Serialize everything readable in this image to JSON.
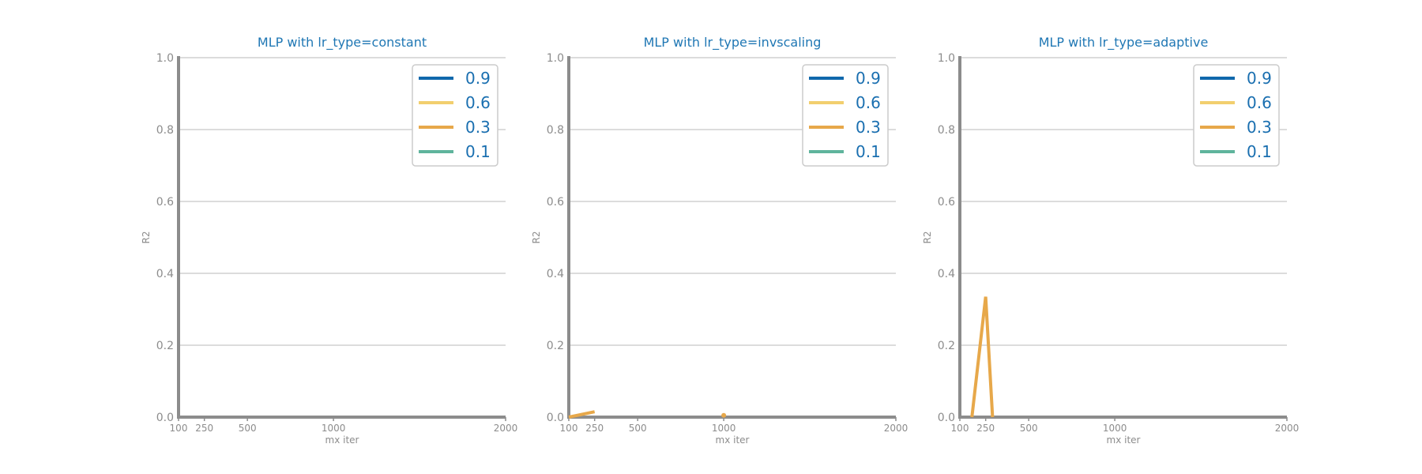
{
  "colors": {
    "title": "#1f77b4",
    "axis": "#8c8c8c",
    "grid": "#d0d0d0",
    "legend_text": "#1a6fb0",
    "legend_border": "#cccccc"
  },
  "chart_data": [
    {
      "type": "line",
      "title": "MLP with lr_type=constant",
      "xlabel": "mx iter",
      "ylabel": "R2",
      "x": [
        100,
        250,
        500,
        1000,
        2000
      ],
      "xticks": [
        "100",
        "250",
        "500",
        "1000",
        "2000"
      ],
      "xlim": [
        100,
        2000
      ],
      "ylim": [
        0.0,
        1.0
      ],
      "yticks": [
        "0.0",
        "0.2",
        "0.4",
        "0.6",
        "0.8",
        "1.0"
      ],
      "grid": true,
      "legend_position": "top-right",
      "series": [
        {
          "name": "0.9",
          "color": "#1068ac",
          "values": [
            null,
            null,
            null,
            null,
            null
          ]
        },
        {
          "name": "0.6",
          "color": "#f2cf6e",
          "values": [
            null,
            null,
            null,
            null,
            null
          ]
        },
        {
          "name": "0.3",
          "color": "#e7a84a",
          "values": [
            null,
            null,
            null,
            null,
            null
          ]
        },
        {
          "name": "0.1",
          "color": "#5fb49c",
          "values": [
            null,
            null,
            null,
            null,
            null
          ]
        }
      ]
    },
    {
      "type": "line",
      "title": "MLP with lr_type=invscaling",
      "xlabel": "mx iter",
      "ylabel": "R2",
      "x": [
        100,
        250,
        500,
        1000,
        2000
      ],
      "xticks": [
        "100",
        "250",
        "500",
        "1000",
        "2000"
      ],
      "xlim": [
        100,
        2000
      ],
      "ylim": [
        0.0,
        1.0
      ],
      "yticks": [
        "0.0",
        "0.2",
        "0.4",
        "0.6",
        "0.8",
        "1.0"
      ],
      "grid": true,
      "legend_position": "top-right",
      "series": [
        {
          "name": "0.9",
          "color": "#1068ac",
          "values": [
            null,
            null,
            null,
            null,
            null
          ]
        },
        {
          "name": "0.6",
          "color": "#f2cf6e",
          "values": [
            null,
            null,
            null,
            null,
            null
          ]
        },
        {
          "name": "0.3",
          "color": "#e7a84a",
          "values": [
            0.0,
            0.015,
            null,
            0.005,
            null
          ]
        },
        {
          "name": "0.1",
          "color": "#5fb49c",
          "values": [
            null,
            null,
            null,
            null,
            null
          ]
        }
      ]
    },
    {
      "type": "line",
      "title": "MLP with lr_type=adaptive",
      "xlabel": "mx iter",
      "ylabel": "R2",
      "x": [
        100,
        250,
        500,
        1000,
        2000
      ],
      "xticks": [
        "100",
        "250",
        "500",
        "1000",
        "2000"
      ],
      "xlim": [
        100,
        2000
      ],
      "ylim": [
        0.0,
        1.0
      ],
      "yticks": [
        "0.0",
        "0.2",
        "0.4",
        "0.6",
        "0.8",
        "1.0"
      ],
      "grid": true,
      "legend_position": "top-right",
      "series": [
        {
          "name": "0.9",
          "color": "#1068ac",
          "values": [
            null,
            null,
            null,
            null,
            null
          ]
        },
        {
          "name": "0.6",
          "color": "#f2cf6e",
          "values": [
            null,
            null,
            null,
            null,
            null
          ]
        },
        {
          "name": "0.3",
          "color": "#e7a84a",
          "x": [
            170,
            250,
            290
          ],
          "values": [
            0.0,
            0.335,
            0.0
          ]
        },
        {
          "name": "0.1",
          "color": "#5fb49c",
          "values": [
            null,
            null,
            null,
            null,
            null
          ]
        }
      ]
    }
  ]
}
